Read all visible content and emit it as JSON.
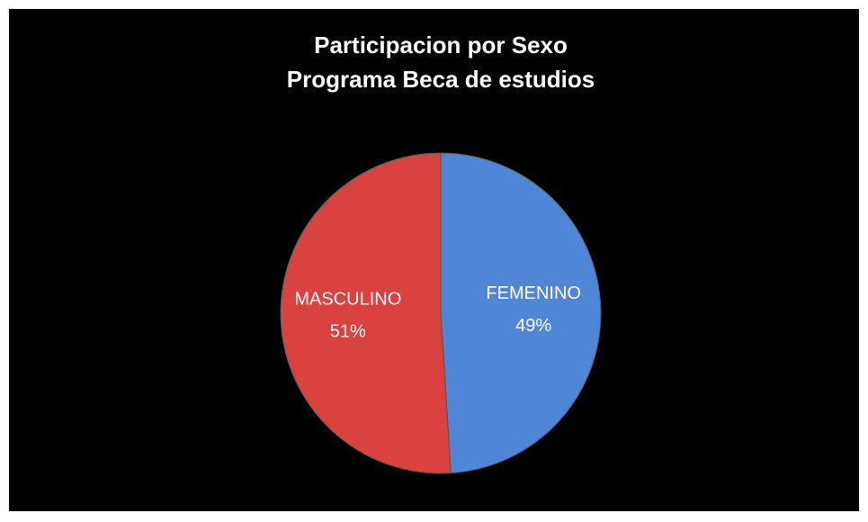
{
  "chart_data": {
    "type": "pie",
    "title": [
      "Participacion por Sexo",
      "Programa Beca de estudios"
    ],
    "categories": [
      "FEMENINO",
      "MASCULINO"
    ],
    "values": [
      49,
      51
    ],
    "value_labels": [
      "49%",
      "51%"
    ],
    "colors": [
      "#4f86d6",
      "#d9423f"
    ]
  }
}
